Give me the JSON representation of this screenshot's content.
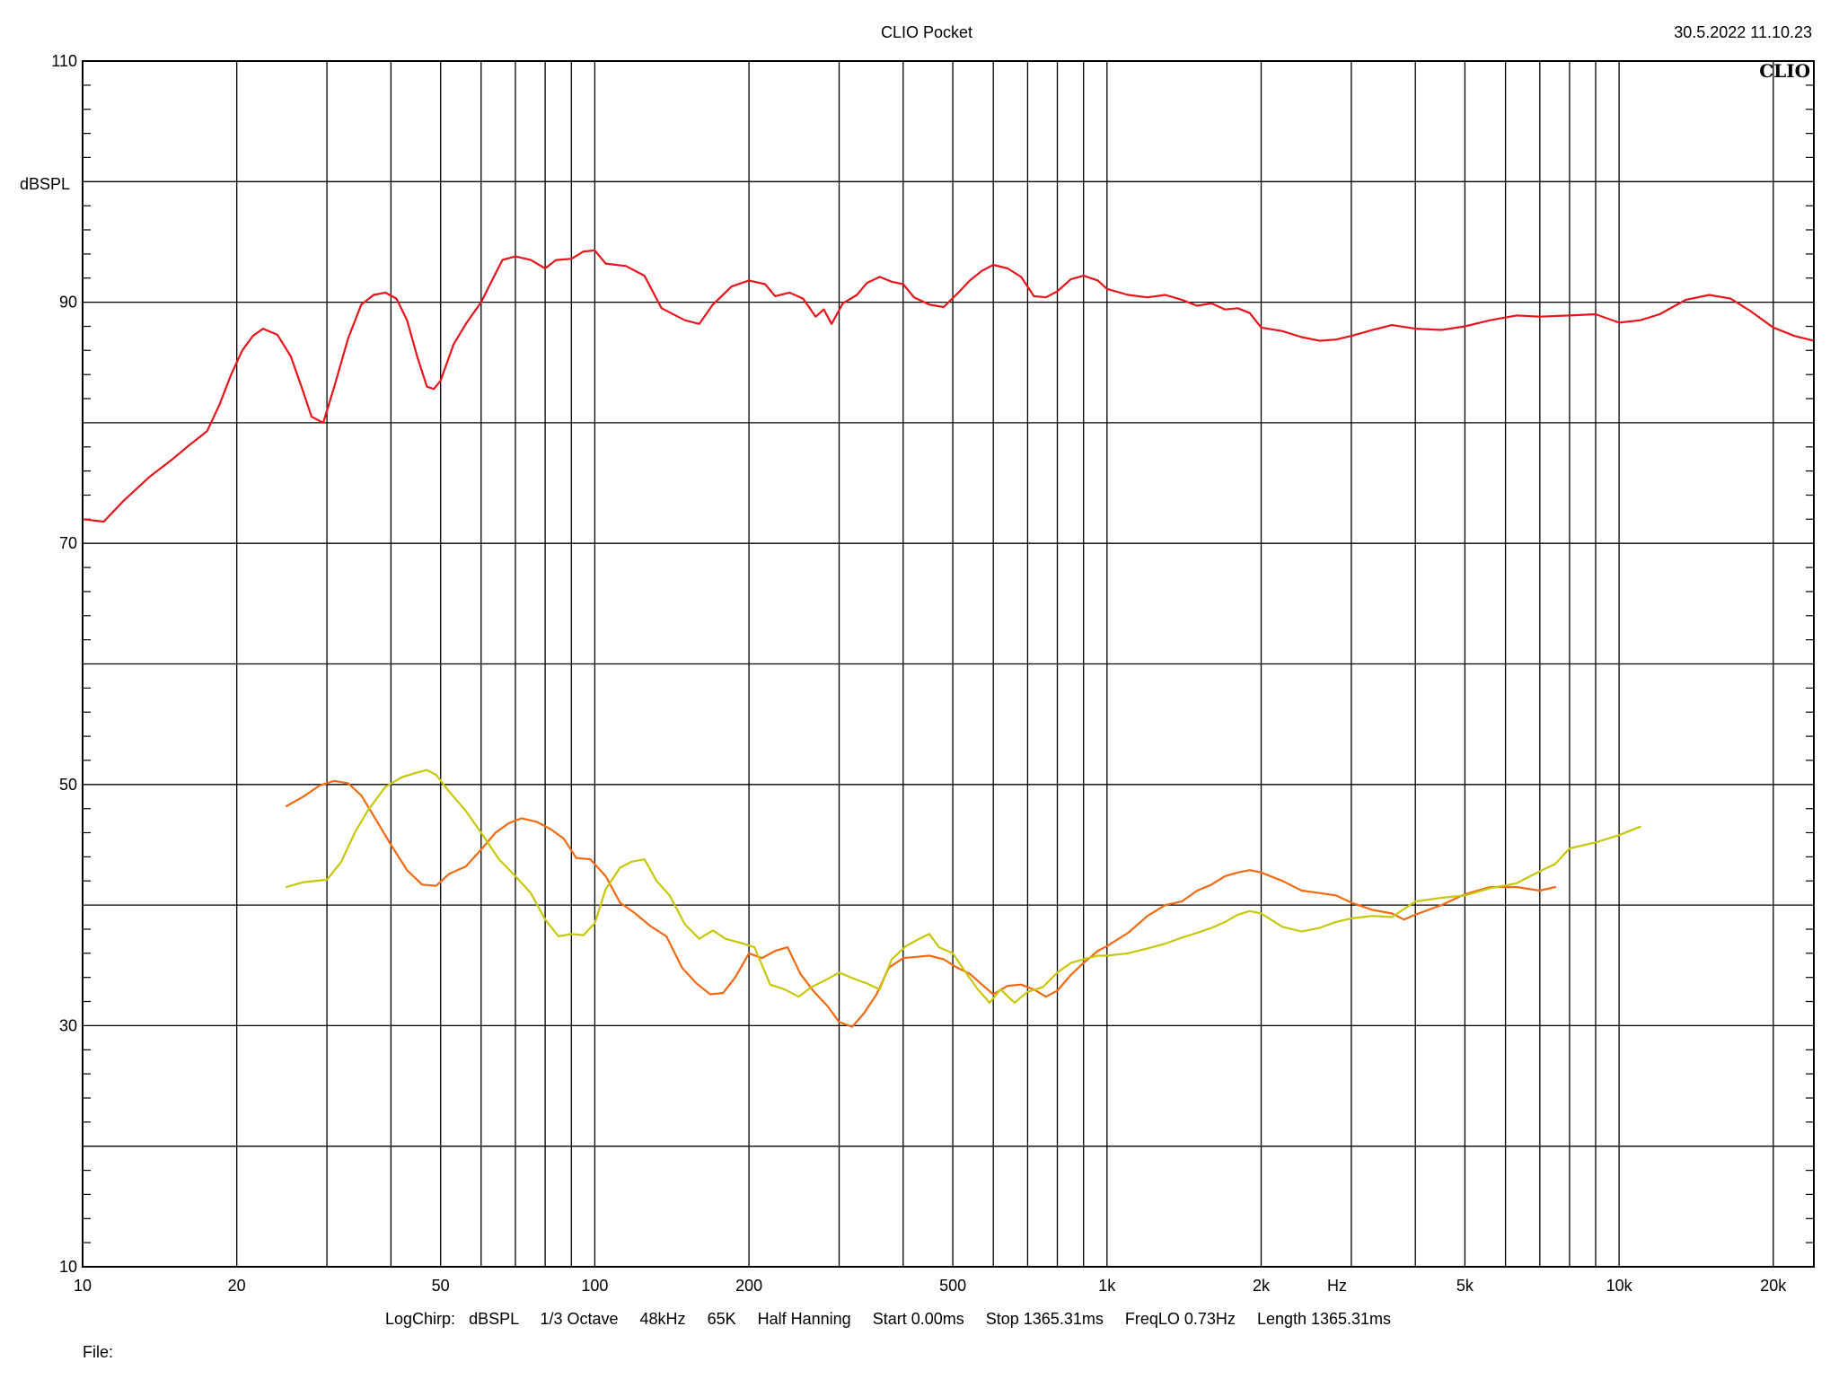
{
  "header": {
    "title": "CLIO Pocket",
    "timestamp": "30.5.2022 11.10.23",
    "logo": "CLIO"
  },
  "footer": {
    "settings": [
      "LogChirp:",
      "dBSPL",
      "1/3 Octave",
      "48kHz",
      "65K",
      "Half Hanning",
      "Start 0.00ms",
      "Stop 1365.31ms",
      "FreqLO 0.73Hz",
      "Length 1365.31ms"
    ],
    "file_label": "File:"
  },
  "chart_data": {
    "type": "line",
    "xscale": "log",
    "xlim": [
      10,
      24000
    ],
    "ylim": [
      10,
      110
    ],
    "ylabel": "dBSPL",
    "xunit": "Hz",
    "grid": true,
    "x_ticks": [
      {
        "value": 10,
        "label": "10"
      },
      {
        "value": 20,
        "label": "20"
      },
      {
        "value": 50,
        "label": "50"
      },
      {
        "value": 100,
        "label": "100"
      },
      {
        "value": 200,
        "label": "200"
      },
      {
        "value": 500,
        "label": "500"
      },
      {
        "value": 1000,
        "label": "1k"
      },
      {
        "value": 2000,
        "label": "2k"
      },
      {
        "value": 5000,
        "label": "5k"
      },
      {
        "value": 10000,
        "label": "10k"
      },
      {
        "value": 20000,
        "label": "20k"
      }
    ],
    "y_ticks": [
      {
        "value": 110,
        "label": "110"
      },
      {
        "value": 90,
        "label": "90"
      },
      {
        "value": 70,
        "label": "70"
      },
      {
        "value": 50,
        "label": "50"
      },
      {
        "value": 30,
        "label": "30"
      },
      {
        "value": 10,
        "label": "10"
      }
    ],
    "series": [
      {
        "color": "#e8141c",
        "points": [
          [
            10,
            72.0
          ],
          [
            11,
            71.8
          ],
          [
            12,
            73.5
          ],
          [
            13.5,
            75.5
          ],
          [
            15,
            77.0
          ],
          [
            16,
            78.0
          ],
          [
            17.5,
            79.3
          ],
          [
            18.5,
            81.5
          ],
          [
            19.5,
            84.0
          ],
          [
            20.5,
            86.0
          ],
          [
            21.5,
            87.2
          ],
          [
            22.5,
            87.8
          ],
          [
            24,
            87.3
          ],
          [
            25.5,
            85.5
          ],
          [
            27,
            82.5
          ],
          [
            28,
            80.5
          ],
          [
            29.5,
            80.0
          ],
          [
            31,
            83.0
          ],
          [
            33,
            87.0
          ],
          [
            35,
            89.8
          ],
          [
            37,
            90.6
          ],
          [
            39,
            90.8
          ],
          [
            41,
            90.3
          ],
          [
            43,
            88.5
          ],
          [
            45,
            85.5
          ],
          [
            47,
            83.0
          ],
          [
            48.5,
            82.8
          ],
          [
            50,
            83.5
          ],
          [
            53,
            86.5
          ],
          [
            56,
            88.2
          ],
          [
            60,
            90.0
          ],
          [
            63,
            91.8
          ],
          [
            66,
            93.5
          ],
          [
            70,
            93.8
          ],
          [
            75,
            93.5
          ],
          [
            80,
            92.8
          ],
          [
            84,
            93.5
          ],
          [
            90,
            93.6
          ],
          [
            95,
            94.2
          ],
          [
            100,
            94.3
          ],
          [
            105,
            93.2
          ],
          [
            115,
            93.0
          ],
          [
            125,
            92.2
          ],
          [
            135,
            89.5
          ],
          [
            150,
            88.5
          ],
          [
            160,
            88.2
          ],
          [
            170,
            89.8
          ],
          [
            185,
            91.3
          ],
          [
            200,
            91.8
          ],
          [
            215,
            91.5
          ],
          [
            225,
            90.5
          ],
          [
            240,
            90.8
          ],
          [
            255,
            90.3
          ],
          [
            270,
            88.8
          ],
          [
            280,
            89.4
          ],
          [
            290,
            88.2
          ],
          [
            305,
            89.9
          ],
          [
            325,
            90.6
          ],
          [
            340,
            91.6
          ],
          [
            360,
            92.1
          ],
          [
            380,
            91.7
          ],
          [
            400,
            91.5
          ],
          [
            420,
            90.4
          ],
          [
            450,
            89.8
          ],
          [
            480,
            89.6
          ],
          [
            510,
            90.7
          ],
          [
            540,
            91.8
          ],
          [
            570,
            92.6
          ],
          [
            600,
            93.1
          ],
          [
            640,
            92.8
          ],
          [
            680,
            92.1
          ],
          [
            720,
            90.5
          ],
          [
            760,
            90.4
          ],
          [
            800,
            90.9
          ],
          [
            850,
            91.9
          ],
          [
            900,
            92.2
          ],
          [
            960,
            91.8
          ],
          [
            1000,
            91.1
          ],
          [
            1100,
            90.6
          ],
          [
            1200,
            90.4
          ],
          [
            1300,
            90.6
          ],
          [
            1400,
            90.2
          ],
          [
            1500,
            89.7
          ],
          [
            1600,
            89.9
          ],
          [
            1700,
            89.4
          ],
          [
            1800,
            89.5
          ],
          [
            1900,
            89.1
          ],
          [
            2000,
            87.9
          ],
          [
            2200,
            87.6
          ],
          [
            2400,
            87.1
          ],
          [
            2600,
            86.8
          ],
          [
            2800,
            86.9
          ],
          [
            3000,
            87.2
          ],
          [
            3300,
            87.7
          ],
          [
            3600,
            88.1
          ],
          [
            4000,
            87.8
          ],
          [
            4500,
            87.7
          ],
          [
            5000,
            88.0
          ],
          [
            5600,
            88.5
          ],
          [
            6300,
            88.9
          ],
          [
            7000,
            88.8
          ],
          [
            8000,
            88.9
          ],
          [
            9000,
            89.0
          ],
          [
            10000,
            88.3
          ],
          [
            11000,
            88.5
          ],
          [
            12000,
            89.0
          ],
          [
            13500,
            90.2
          ],
          [
            15000,
            90.6
          ],
          [
            16500,
            90.3
          ],
          [
            18000,
            89.3
          ],
          [
            20000,
            87.9
          ],
          [
            22000,
            87.2
          ],
          [
            24000,
            86.8
          ]
        ]
      },
      {
        "color": "#f26b12",
        "points": [
          [
            25,
            48.2
          ],
          [
            27,
            49.0
          ],
          [
            29,
            49.9
          ],
          [
            31,
            50.3
          ],
          [
            33,
            50.1
          ],
          [
            35,
            49.1
          ],
          [
            37,
            47.4
          ],
          [
            40,
            45.0
          ],
          [
            43,
            42.9
          ],
          [
            46,
            41.7
          ],
          [
            49,
            41.6
          ],
          [
            52,
            42.6
          ],
          [
            56,
            43.2
          ],
          [
            60,
            44.6
          ],
          [
            64,
            46.0
          ],
          [
            68,
            46.8
          ],
          [
            72,
            47.2
          ],
          [
            77,
            46.9
          ],
          [
            82,
            46.3
          ],
          [
            87,
            45.5
          ],
          [
            92,
            43.9
          ],
          [
            98,
            43.8
          ],
          [
            105,
            42.4
          ],
          [
            112,
            40.2
          ],
          [
            120,
            39.3
          ],
          [
            128,
            38.3
          ],
          [
            138,
            37.4
          ],
          [
            148,
            34.8
          ],
          [
            158,
            33.5
          ],
          [
            168,
            32.6
          ],
          [
            178,
            32.7
          ],
          [
            188,
            34.0
          ],
          [
            200,
            36.0
          ],
          [
            212,
            35.6
          ],
          [
            225,
            36.2
          ],
          [
            238,
            36.5
          ],
          [
            252,
            34.3
          ],
          [
            268,
            32.8
          ],
          [
            285,
            31.6
          ],
          [
            300,
            30.3
          ],
          [
            318,
            29.9
          ],
          [
            335,
            31.0
          ],
          [
            355,
            32.6
          ],
          [
            375,
            34.8
          ],
          [
            400,
            35.6
          ],
          [
            425,
            35.7
          ],
          [
            450,
            35.8
          ],
          [
            480,
            35.5
          ],
          [
            510,
            34.8
          ],
          [
            540,
            34.3
          ],
          [
            570,
            33.4
          ],
          [
            600,
            32.6
          ],
          [
            640,
            33.3
          ],
          [
            680,
            33.4
          ],
          [
            720,
            33.0
          ],
          [
            760,
            32.4
          ],
          [
            800,
            32.9
          ],
          [
            850,
            34.2
          ],
          [
            900,
            35.2
          ],
          [
            960,
            36.2
          ],
          [
            1000,
            36.6
          ],
          [
            1100,
            37.7
          ],
          [
            1200,
            39.1
          ],
          [
            1300,
            40.0
          ],
          [
            1400,
            40.3
          ],
          [
            1500,
            41.2
          ],
          [
            1600,
            41.7
          ],
          [
            1700,
            42.4
          ],
          [
            1800,
            42.7
          ],
          [
            1900,
            42.9
          ],
          [
            2000,
            42.7
          ],
          [
            2200,
            42.0
          ],
          [
            2400,
            41.2
          ],
          [
            2600,
            41.0
          ],
          [
            2800,
            40.8
          ],
          [
            3000,
            40.2
          ],
          [
            3300,
            39.6
          ],
          [
            3600,
            39.3
          ],
          [
            3800,
            38.8
          ],
          [
            4000,
            39.2
          ],
          [
            4500,
            40.0
          ],
          [
            5000,
            40.9
          ],
          [
            5600,
            41.5
          ],
          [
            6300,
            41.5
          ],
          [
            7000,
            41.2
          ],
          [
            7500,
            41.5
          ]
        ]
      },
      {
        "color": "#c8c80a",
        "points": [
          [
            25,
            41.5
          ],
          [
            27,
            41.9
          ],
          [
            30,
            42.1
          ],
          [
            32,
            43.6
          ],
          [
            34,
            46.0
          ],
          [
            36,
            47.8
          ],
          [
            39,
            49.8
          ],
          [
            42,
            50.6
          ],
          [
            45,
            51.0
          ],
          [
            47,
            51.2
          ],
          [
            49,
            50.8
          ],
          [
            52,
            49.4
          ],
          [
            56,
            47.8
          ],
          [
            60,
            46.0
          ],
          [
            65,
            43.8
          ],
          [
            70,
            42.4
          ],
          [
            75,
            41.0
          ],
          [
            80,
            38.8
          ],
          [
            85,
            37.4
          ],
          [
            90,
            37.6
          ],
          [
            95,
            37.5
          ],
          [
            100,
            38.5
          ],
          [
            105,
            41.3
          ],
          [
            112,
            43.1
          ],
          [
            118,
            43.6
          ],
          [
            125,
            43.8
          ],
          [
            132,
            42.0
          ],
          [
            140,
            40.8
          ],
          [
            150,
            38.4
          ],
          [
            160,
            37.2
          ],
          [
            170,
            37.9
          ],
          [
            180,
            37.2
          ],
          [
            195,
            36.8
          ],
          [
            205,
            36.5
          ],
          [
            220,
            33.4
          ],
          [
            235,
            33.0
          ],
          [
            250,
            32.4
          ],
          [
            265,
            33.2
          ],
          [
            280,
            33.7
          ],
          [
            300,
            34.4
          ],
          [
            320,
            33.9
          ],
          [
            340,
            33.5
          ],
          [
            360,
            33.0
          ],
          [
            380,
            35.5
          ],
          [
            405,
            36.6
          ],
          [
            430,
            37.2
          ],
          [
            450,
            37.6
          ],
          [
            470,
            36.5
          ],
          [
            500,
            36.0
          ],
          [
            530,
            34.4
          ],
          [
            560,
            33.0
          ],
          [
            590,
            31.9
          ],
          [
            620,
            33.0
          ],
          [
            660,
            31.9
          ],
          [
            700,
            32.8
          ],
          [
            750,
            33.2
          ],
          [
            800,
            34.4
          ],
          [
            850,
            35.2
          ],
          [
            900,
            35.5
          ],
          [
            960,
            35.8
          ],
          [
            1000,
            35.8
          ],
          [
            1100,
            36.0
          ],
          [
            1200,
            36.4
          ],
          [
            1300,
            36.8
          ],
          [
            1400,
            37.3
          ],
          [
            1500,
            37.7
          ],
          [
            1600,
            38.1
          ],
          [
            1700,
            38.6
          ],
          [
            1800,
            39.2
          ],
          [
            1900,
            39.5
          ],
          [
            2000,
            39.3
          ],
          [
            2200,
            38.2
          ],
          [
            2400,
            37.8
          ],
          [
            2600,
            38.1
          ],
          [
            2800,
            38.6
          ],
          [
            3000,
            38.9
          ],
          [
            3300,
            39.1
          ],
          [
            3600,
            39.0
          ],
          [
            4000,
            40.3
          ],
          [
            4500,
            40.6
          ],
          [
            5000,
            40.8
          ],
          [
            5600,
            41.4
          ],
          [
            6300,
            41.8
          ],
          [
            7000,
            42.8
          ],
          [
            7500,
            43.4
          ],
          [
            8000,
            44.7
          ],
          [
            9000,
            45.2
          ],
          [
            10000,
            45.8
          ],
          [
            11000,
            46.5
          ]
        ]
      }
    ]
  }
}
